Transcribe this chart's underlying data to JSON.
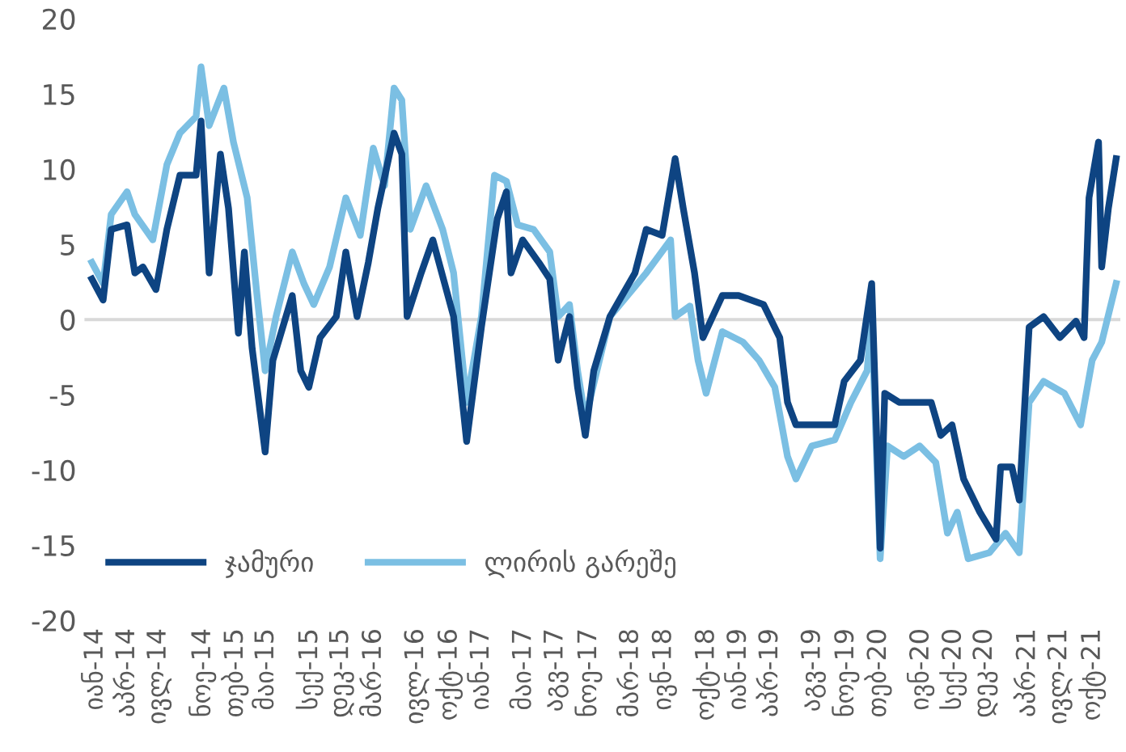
{
  "chart_data": {
    "type": "line",
    "xlim": [
      "2013-12-01",
      "2021-12-20"
    ],
    "ylim": [
      -20,
      20
    ],
    "yticks": [
      -20,
      -15,
      -10,
      -5,
      0,
      5,
      10,
      15,
      20
    ],
    "xticks": [
      {
        "value": "2014-01-01",
        "label": "იან-14"
      },
      {
        "value": "2014-04-01",
        "label": "აპრ-14"
      },
      {
        "value": "2014-07-01",
        "label": "ივლ-14"
      },
      {
        "value": "2014-11-01",
        "label": "ნოე-14"
      },
      {
        "value": "2015-02-01",
        "label": "თებ-15"
      },
      {
        "value": "2015-05-01",
        "label": "მაი-15"
      },
      {
        "value": "2015-09-01",
        "label": "სექ-15"
      },
      {
        "value": "2015-12-01",
        "label": "დეკ-15"
      },
      {
        "value": "2016-03-01",
        "label": "მარ-16"
      },
      {
        "value": "2016-07-01",
        "label": "ივლ-16"
      },
      {
        "value": "2016-10-01",
        "label": "ოქტ-16"
      },
      {
        "value": "2017-01-01",
        "label": "იან-17"
      },
      {
        "value": "2017-05-01",
        "label": "მაი-17"
      },
      {
        "value": "2017-08-01",
        "label": "აგვ-17"
      },
      {
        "value": "2017-11-01",
        "label": "ნოე-17"
      },
      {
        "value": "2018-03-01",
        "label": "მარ-18"
      },
      {
        "value": "2018-06-01",
        "label": "ივნ-18"
      },
      {
        "value": "2018-10-01",
        "label": "ოქტ-18"
      },
      {
        "value": "2019-01-01",
        "label": "იან-19"
      },
      {
        "value": "2019-04-01",
        "label": "აპრ-19"
      },
      {
        "value": "2019-08-01",
        "label": "აგვ-19"
      },
      {
        "value": "2019-11-01",
        "label": "ნოე-19"
      },
      {
        "value": "2020-02-01",
        "label": "თებ-20"
      },
      {
        "value": "2020-06-01",
        "label": "ივნ-20"
      },
      {
        "value": "2020-09-01",
        "label": "სექ-20"
      },
      {
        "value": "2020-12-01",
        "label": "დეკ-20"
      },
      {
        "value": "2021-04-01",
        "label": "აპრ-21"
      },
      {
        "value": "2021-07-01",
        "label": "ივლ-21"
      },
      {
        "value": "2021-10-01",
        "label": "ოქტ-21"
      }
    ],
    "ref_lines": [
      {
        "axis": "y",
        "value": 0,
        "color": "#d9d9d9"
      }
    ],
    "grid": false,
    "legend": "bottom left",
    "line_style": "solid",
    "marker": "none",
    "series": [
      {
        "name": "ლირის გარეშე",
        "color": "#7bbfe3",
        "x": [
          "2013-12-22",
          "2014-01-23",
          "2014-02-15",
          "2014-04-01",
          "2014-04-23",
          "2014-06-13",
          "2014-07-23",
          "2014-08-29",
          "2014-10-14",
          "2014-10-28",
          "2014-11-20",
          "2015-01-01",
          "2015-01-28",
          "2015-03-08",
          "2015-04-05",
          "2015-04-28",
          "2015-05-29",
          "2015-07-14",
          "2015-08-16",
          "2015-09-13",
          "2015-10-28",
          "2015-12-13",
          "2016-01-23",
          "2016-02-29",
          "2016-04-01",
          "2016-04-28",
          "2016-05-20",
          "2016-06-13",
          "2016-07-28",
          "2016-09-13",
          "2016-10-14",
          "2016-11-20",
          "2017-01-01",
          "2017-02-07",
          "2017-03-13",
          "2017-04-14",
          "2017-05-29",
          "2017-07-14",
          "2017-08-07",
          "2017-09-08",
          "2017-10-01",
          "2017-10-23",
          "2018-01-01",
          "2018-04-14",
          "2018-06-22",
          "2018-07-05",
          "2018-08-16",
          "2018-09-08",
          "2018-10-01",
          "2018-11-16",
          "2019-01-14",
          "2019-02-28",
          "2019-04-14",
          "2019-05-20",
          "2019-06-13",
          "2019-07-28",
          "2019-10-01",
          "2019-11-16",
          "2020-01-01",
          "2020-01-14",
          "2020-02-07",
          "2020-02-28",
          "2020-04-14",
          "2020-05-29",
          "2020-07-14",
          "2020-08-16",
          "2020-09-13",
          "2020-10-14",
          "2020-12-13",
          "2021-01-28",
          "2021-03-08",
          "2021-04-05",
          "2021-05-16",
          "2021-07-14",
          "2021-08-29",
          "2021-10-01",
          "2021-10-28",
          "2021-12-08"
        ],
        "values": [
          3.8,
          2.4,
          7,
          8.5,
          7,
          5.3,
          10.3,
          12.4,
          13.5,
          16.8,
          12.9,
          15.4,
          11.8,
          8.1,
          1.6,
          -3.4,
          0.2,
          4.5,
          2.4,
          1,
          3.5,
          8.1,
          5.6,
          11.4,
          8.9,
          15.4,
          14.6,
          6,
          8.9,
          6,
          3.1,
          -5.5,
          0.2,
          9.6,
          9.2,
          6.3,
          6,
          4.5,
          0.2,
          1,
          -3.4,
          -6.6,
          0.2,
          3.1,
          5.3,
          0.2,
          0.9,
          -2.7,
          -4.9,
          -0.8,
          -1.5,
          -2.7,
          -4.5,
          -9.1,
          -10.6,
          -8.4,
          -8,
          -5.5,
          -3.4,
          0.2,
          -15.9,
          -8.4,
          -9.1,
          -8.4,
          -9.5,
          -14.2,
          -12.8,
          -15.9,
          -15.5,
          -14.2,
          -15.5,
          -5.5,
          -4.1,
          -4.9,
          -7,
          -2.7,
          -1.5,
          2.4
        ]
      },
      {
        "name": "ჯამური",
        "color": "#0e4482",
        "x": [
          "2013-12-22",
          "2014-01-23",
          "2014-02-15",
          "2014-04-01",
          "2014-04-23",
          "2014-05-16",
          "2014-06-22",
          "2014-07-23",
          "2014-08-29",
          "2014-10-14",
          "2014-10-28",
          "2014-11-20",
          "2014-12-22",
          "2015-01-14",
          "2015-02-11",
          "2015-02-28",
          "2015-03-22",
          "2015-04-28",
          "2015-05-20",
          "2015-07-14",
          "2015-08-07",
          "2015-08-30",
          "2015-10-01",
          "2015-11-16",
          "2015-12-13",
          "2016-01-14",
          "2016-02-15",
          "2016-03-13",
          "2016-04-28",
          "2016-05-20",
          "2016-06-04",
          "2016-07-14",
          "2016-08-16",
          "2016-10-14",
          "2016-11-20",
          "2017-01-01",
          "2017-02-15",
          "2017-03-13",
          "2017-03-26",
          "2017-04-28",
          "2017-06-13",
          "2017-07-14",
          "2017-08-07",
          "2017-09-08",
          "2017-10-01",
          "2017-10-23",
          "2017-11-16",
          "2018-01-01",
          "2018-03-13",
          "2018-04-14",
          "2018-05-29",
          "2018-07-05",
          "2018-07-28",
          "2018-08-29",
          "2018-09-22",
          "2018-11-16",
          "2019-01-01",
          "2019-03-13",
          "2019-04-28",
          "2019-05-20",
          "2019-06-13",
          "2019-07-28",
          "2019-10-01",
          "2019-10-28",
          "2019-12-13",
          "2020-01-14",
          "2020-01-28",
          "2020-02-07",
          "2020-02-20",
          "2020-04-01",
          "2020-05-16",
          "2020-07-01",
          "2020-07-28",
          "2020-08-29",
          "2020-10-01",
          "2020-11-16",
          "2021-01-01",
          "2021-01-14",
          "2021-02-15",
          "2021-03-08",
          "2021-04-05",
          "2021-05-16",
          "2021-07-01",
          "2021-08-16",
          "2021-09-08",
          "2021-09-22",
          "2021-10-19",
          "2021-10-28",
          "2021-11-16",
          "2021-12-08"
        ],
        "values": [
          2.7,
          1.3,
          6,
          6.3,
          3.1,
          3.5,
          2,
          6,
          9.6,
          9.6,
          13.2,
          3.1,
          11,
          7.4,
          -0.9,
          4.5,
          -1.9,
          -8.8,
          -2.7,
          1.6,
          -3.4,
          -4.5,
          -1.2,
          0.2,
          4.5,
          0.2,
          3.8,
          7.4,
          12.4,
          11,
          0.2,
          3.1,
          5.3,
          0.2,
          -8.1,
          -0.5,
          6.7,
          8.5,
          3.1,
          5.3,
          3.8,
          2.7,
          -2.7,
          0.2,
          -4.5,
          -7.7,
          -3.4,
          0.2,
          3.1,
          6,
          5.6,
          10.7,
          7.4,
          3.1,
          -1.2,
          1.6,
          1.6,
          1,
          -1.2,
          -5.5,
          -7,
          -7,
          -7,
          -4.1,
          -2.7,
          2.4,
          -7.7,
          -15.2,
          -4.9,
          -5.5,
          -5.5,
          -5.5,
          -7.7,
          -7,
          -10.6,
          -12.8,
          -14.6,
          -9.8,
          -9.8,
          -12,
          -0.5,
          0.2,
          -1.2,
          -0.1,
          -1.2,
          8.1,
          11.8,
          3.5,
          7.4,
          10.7
        ]
      }
    ]
  }
}
